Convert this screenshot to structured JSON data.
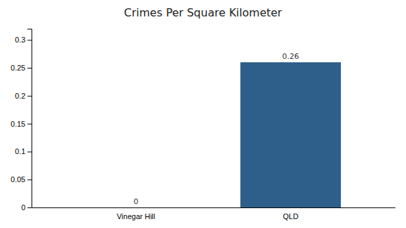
{
  "chart_data": {
    "type": "bar",
    "title": "Crimes Per Square Kilometer",
    "categories": [
      "Vinegar Hill",
      "QLD"
    ],
    "values": [
      0,
      0.26
    ],
    "color": "#2e5f8a",
    "ylim": [
      0,
      0.32
    ],
    "yticks": [
      0,
      0.05,
      0.1,
      0.15,
      0.2,
      0.25,
      0.3
    ],
    "grid": false,
    "data_labels": true
  }
}
